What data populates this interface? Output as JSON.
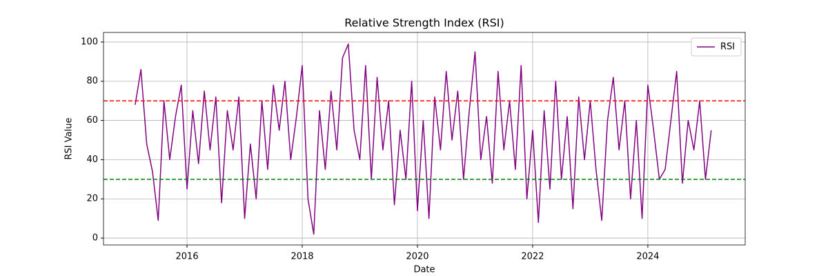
{
  "chart_data": {
    "type": "line",
    "title": "Relative Strength Index (RSI)",
    "x_label": "Date",
    "y_label": "RSI Value",
    "x": [
      2015.1,
      2015.2,
      2015.3,
      2015.4,
      2015.5,
      2015.6,
      2015.7,
      2015.8,
      2015.9,
      2016.0,
      2016.1,
      2016.2,
      2016.3,
      2016.4,
      2016.5,
      2016.6,
      2016.7,
      2016.8,
      2016.9,
      2017.0,
      2017.1,
      2017.2,
      2017.3,
      2017.4,
      2017.5,
      2017.6,
      2017.7,
      2017.8,
      2017.9,
      2018.0,
      2018.1,
      2018.2,
      2018.3,
      2018.4,
      2018.5,
      2018.6,
      2018.7,
      2018.8,
      2018.9,
      2019.0,
      2019.1,
      2019.2,
      2019.3,
      2019.4,
      2019.5,
      2019.6,
      2019.7,
      2019.8,
      2019.9,
      2020.0,
      2020.1,
      2020.2,
      2020.3,
      2020.4,
      2020.5,
      2020.6,
      2020.7,
      2020.8,
      2020.9,
      2021.0,
      2021.1,
      2021.2,
      2021.3,
      2021.4,
      2021.5,
      2021.6,
      2021.7,
      2021.8,
      2021.9,
      2022.0,
      2022.1,
      2022.2,
      2022.3,
      2022.4,
      2022.5,
      2022.6,
      2022.7,
      2022.8,
      2022.9,
      2023.0,
      2023.1,
      2023.2,
      2023.3,
      2023.4,
      2023.5,
      2023.6,
      2023.7,
      2023.8,
      2023.9,
      2024.0,
      2024.1,
      2024.2,
      2024.3,
      2024.4,
      2024.5,
      2024.6,
      2024.7,
      2024.8,
      2024.9,
      2025.0,
      2025.1
    ],
    "series": [
      {
        "name": "RSI",
        "color": "#800080",
        "values": [
          68,
          86,
          48,
          34,
          9,
          70,
          40,
          62,
          78,
          25,
          65,
          38,
          75,
          45,
          72,
          18,
          65,
          45,
          72,
          10,
          48,
          20,
          70,
          35,
          78,
          55,
          80,
          40,
          62,
          88,
          20,
          2,
          65,
          35,
          75,
          45,
          92,
          99,
          55,
          40,
          88,
          30,
          82,
          45,
          70,
          17,
          55,
          30,
          80,
          14,
          60,
          10,
          72,
          45,
          85,
          50,
          75,
          30,
          65,
          95,
          40,
          62,
          28,
          85,
          45,
          70,
          35,
          88,
          20,
          55,
          8,
          65,
          25,
          80,
          30,
          62,
          15,
          72,
          40,
          70,
          35,
          9,
          60,
          82,
          45,
          70,
          20,
          60,
          10,
          78,
          55,
          30,
          35,
          60,
          85,
          28,
          60,
          45,
          70,
          30,
          55
        ]
      }
    ],
    "reference_lines": [
      {
        "value": 70,
        "color": "#ff0000"
      },
      {
        "value": 30,
        "color": "#008000"
      }
    ],
    "xlim": [
      2014.55,
      2025.69
    ],
    "xticks": [
      2016,
      2018,
      2020,
      2022,
      2024
    ],
    "ylim": [
      -3.5,
      104.9
    ],
    "yticks": [
      0,
      20,
      40,
      60,
      80,
      100
    ],
    "grid": true,
    "legend": "upper right"
  }
}
